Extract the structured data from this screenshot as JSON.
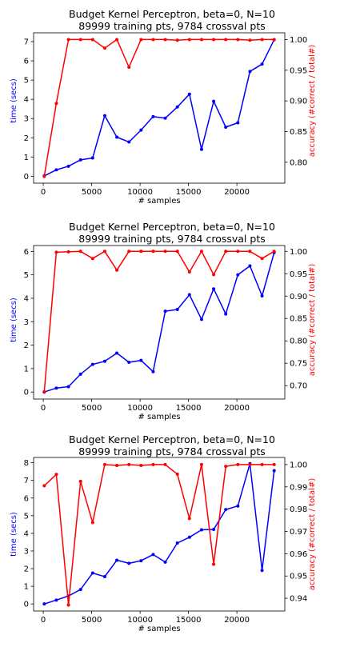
{
  "colors": {
    "time": "#0000ff",
    "accuracy": "#ff0000",
    "axis": "#000000"
  },
  "chart_data": [
    {
      "type": "line",
      "title": "Budget Kernel Perceptron, beta=0, N=10",
      "subtitle": "89999 training pts, 9784 crossval pts",
      "xlabel": "# samples",
      "ylabel_left": "time (secs)",
      "ylabel_right": "accuracy (#correct / total#)",
      "x": [
        100,
        1350,
        2600,
        3850,
        5100,
        6350,
        7600,
        8850,
        10100,
        11350,
        12600,
        13850,
        15100,
        16350,
        17600,
        18850,
        20100,
        21350,
        22600,
        23850
      ],
      "xlim": [
        -1000,
        24950
      ],
      "xticks": [
        0,
        5000,
        10000,
        15000,
        20000
      ],
      "xtick_labels": [
        "0",
        "5000",
        "10000",
        "15000",
        "20000"
      ],
      "series": [
        {
          "name": "time",
          "axis": "left",
          "values": [
            0.02,
            0.33,
            0.52,
            0.85,
            0.95,
            3.15,
            2.03,
            1.78,
            2.4,
            3.1,
            3.02,
            3.6,
            4.27,
            1.4,
            3.9,
            2.55,
            2.78,
            5.45,
            5.83,
            7.1
          ]
        },
        {
          "name": "accuracy",
          "axis": "right",
          "values": [
            0.777,
            0.896,
            1.0,
            1.0,
            1.0,
            0.986,
            1.0,
            0.955,
            1.0,
            1.0,
            1.0,
            0.999,
            1.0,
            1.0,
            1.0,
            1.0,
            1.0,
            0.999,
            1.0,
            1.0
          ]
        }
      ],
      "ylim_left": [
        -0.36,
        7.46
      ],
      "yticks_left": [
        0,
        1,
        2,
        3,
        4,
        5,
        6,
        7
      ],
      "ytick_labels_left": [
        "0",
        "1",
        "2",
        "3",
        "4",
        "5",
        "6",
        "7"
      ],
      "ylim_right": [
        0.766,
        1.011
      ],
      "yticks_right": [
        0.8,
        0.85,
        0.9,
        0.95,
        1.0
      ],
      "ytick_labels_right": [
        "0.80",
        "0.85",
        "0.90",
        "0.95",
        "1.00"
      ]
    },
    {
      "type": "line",
      "title": "Budget Kernel Perceptron, beta=0, N=10",
      "subtitle": "89999 training pts, 9784 crossval pts",
      "xlabel": "# samples",
      "ylabel_left": "time (secs)",
      "ylabel_right": "accuracy (#correct / total#)",
      "x": [
        100,
        1350,
        2600,
        3850,
        5100,
        6350,
        7600,
        8850,
        10100,
        11350,
        12600,
        13850,
        15100,
        16350,
        17600,
        18850,
        20100,
        21350,
        22600,
        23850
      ],
      "xlim": [
        -1000,
        24950
      ],
      "xticks": [
        0,
        5000,
        10000,
        15000,
        20000
      ],
      "xtick_labels": [
        "0",
        "5000",
        "10000",
        "15000",
        "20000"
      ],
      "series": [
        {
          "name": "time",
          "axis": "left",
          "values": [
            0.0,
            0.17,
            0.23,
            0.76,
            1.18,
            1.31,
            1.66,
            1.27,
            1.35,
            0.87,
            3.45,
            3.52,
            4.15,
            3.1,
            4.4,
            3.33,
            5.0,
            5.38,
            4.1,
            5.95
          ]
        },
        {
          "name": "accuracy",
          "axis": "right",
          "values": [
            0.686,
            0.998,
            0.999,
            1.0,
            0.984,
            1.0,
            0.958,
            1.0,
            1.0,
            1.0,
            1.0,
            1.0,
            0.954,
            1.0,
            0.948,
            1.0,
            1.0,
            1.0,
            0.984,
            1.0
          ]
        }
      ],
      "ylim_left": [
        -0.3,
        6.25
      ],
      "yticks_left": [
        0,
        1,
        2,
        3,
        4,
        5,
        6
      ],
      "ytick_labels_left": [
        "0",
        "1",
        "2",
        "3",
        "4",
        "5",
        "6"
      ],
      "ylim_right": [
        0.67,
        1.013
      ],
      "yticks_right": [
        0.7,
        0.75,
        0.8,
        0.85,
        0.9,
        0.95,
        1.0
      ],
      "ytick_labels_right": [
        "0.70",
        "0.75",
        "0.80",
        "0.85",
        "0.90",
        "0.95",
        "1.00"
      ]
    },
    {
      "type": "line",
      "title": "Budget Kernel Perceptron, beta=0, N=10",
      "subtitle": "89999 training pts, 9784 crossval pts",
      "xlabel": "# samples",
      "ylabel_left": "time (secs)",
      "ylabel_right": "accuracy (#correct / total#)",
      "x": [
        100,
        1350,
        2600,
        3850,
        5100,
        6350,
        7600,
        8850,
        10100,
        11350,
        12600,
        13850,
        15100,
        16350,
        17600,
        18850,
        20100,
        21350,
        22600,
        23850
      ],
      "xlim": [
        -1000,
        24950
      ],
      "xticks": [
        0,
        5000,
        10000,
        15000,
        20000
      ],
      "xtick_labels": [
        "0",
        "5000",
        "10000",
        "15000",
        "20000"
      ],
      "series": [
        {
          "name": "time",
          "axis": "left",
          "values": [
            0.0,
            0.22,
            0.45,
            0.82,
            1.75,
            1.55,
            2.48,
            2.3,
            2.45,
            2.8,
            2.37,
            3.45,
            3.78,
            4.2,
            4.22,
            5.35,
            5.55,
            7.95,
            1.9,
            7.55
          ]
        },
        {
          "name": "accuracy",
          "axis": "right",
          "values": [
            0.9905,
            0.9956,
            0.937,
            0.9925,
            0.974,
            1.0,
            0.9996,
            1.0,
            0.9996,
            1.0,
            1.0,
            0.9957,
            0.9758,
            1.0,
            0.9553,
            0.9992,
            1.0,
            1.0,
            1.0,
            1.0
          ]
        }
      ],
      "ylim_left": [
        -0.4,
        8.3
      ],
      "yticks_left": [
        0,
        1,
        2,
        3,
        4,
        5,
        6,
        7,
        8
      ],
      "ytick_labels_left": [
        "0",
        "1",
        "2",
        "3",
        "4",
        "5",
        "6",
        "7",
        "8"
      ],
      "ylim_right": [
        0.9343,
        1.0032
      ],
      "yticks_right": [
        0.94,
        0.95,
        0.96,
        0.97,
        0.98,
        0.99,
        1.0
      ],
      "ytick_labels_right": [
        "0.94",
        "0.95",
        "0.96",
        "0.97",
        "0.98",
        "0.99",
        "1.00"
      ]
    }
  ]
}
